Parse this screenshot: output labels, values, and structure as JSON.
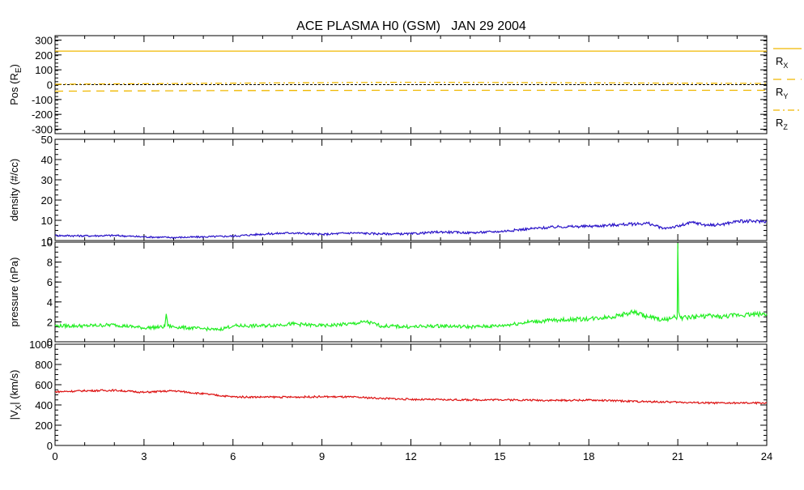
{
  "title": "ACE PLASMA H0 (GSM)   JAN 29 2004",
  "x_ticks": [
    "0",
    "3",
    "6",
    "9",
    "12",
    "15",
    "18",
    "21",
    "24"
  ],
  "colors": {
    "position": "#f0b800",
    "density": "#2a14c8",
    "pressure": "#22ee22",
    "velocity": "#dd1111",
    "axis": "#000000",
    "background": "#ffffff"
  },
  "chart_data": [
    {
      "type": "line",
      "panel": "position",
      "ylabel_main": "Pos (R",
      "ylabel_sub": "E",
      "ylabel_close": ")",
      "xlim": [
        0,
        24
      ],
      "ylim": [
        -330,
        330
      ],
      "ytick_labels": [
        "300",
        "200",
        "100",
        "0",
        "-100",
        "-200",
        "-300"
      ],
      "yticks": [
        300,
        200,
        100,
        0,
        -100,
        -200,
        -300
      ],
      "zero_line": true,
      "legend_position": "right",
      "series": [
        {
          "name": "R",
          "name_sub": "X",
          "style": "solid",
          "x": [
            0,
            24
          ],
          "values": [
            226,
            226
          ]
        },
        {
          "name": "R",
          "name_sub": "Y",
          "style": "dashed",
          "x": [
            0,
            6,
            12,
            18,
            24
          ],
          "values": [
            -44,
            -40,
            -38,
            -38,
            -38
          ]
        },
        {
          "name": "R",
          "name_sub": "Z",
          "style": "dash-dot",
          "x": [
            0,
            6,
            12,
            18,
            24
          ],
          "values": [
            3,
            10,
            16,
            12,
            8
          ]
        }
      ]
    },
    {
      "type": "line",
      "panel": "density",
      "ylabel": "density (#/cc)",
      "xlim": [
        0,
        24
      ],
      "ylim": [
        0,
        50
      ],
      "ytick_labels": [
        "50",
        "40",
        "30",
        "20",
        "10",
        "0"
      ],
      "yticks": [
        50,
        40,
        30,
        20,
        10,
        0
      ],
      "series": [
        {
          "x": [
            0,
            1,
            2,
            3,
            4,
            5,
            6,
            7,
            8,
            9,
            10,
            11,
            12,
            13,
            14,
            15,
            16,
            17,
            18,
            19,
            20,
            20.5,
            21,
            21.5,
            22,
            22.5,
            23,
            24
          ],
          "values": [
            2.5,
            2.3,
            2.5,
            1.8,
            1.5,
            1.8,
            2.2,
            3.2,
            3.8,
            3.0,
            3.8,
            3.3,
            3.3,
            4.3,
            3.8,
            4.5,
            5.8,
            6.8,
            7.0,
            7.8,
            8.5,
            6.0,
            7.0,
            9.0,
            7.5,
            8.0,
            9.5,
            9.5
          ]
        }
      ]
    },
    {
      "type": "line",
      "panel": "pressure",
      "ylabel": "pressure (nPa)",
      "xlim": [
        0,
        24
      ],
      "ylim": [
        0,
        10
      ],
      "ytick_labels": [
        "10",
        "8",
        "6",
        "4",
        "2",
        "0"
      ],
      "yticks": [
        10,
        8,
        6,
        4,
        2,
        0
      ],
      "series": [
        {
          "x": [
            0,
            1,
            2,
            3,
            3.7,
            3.75,
            3.8,
            4,
            5,
            5.5,
            6,
            7,
            8,
            9,
            10,
            10.5,
            11,
            12,
            13,
            14,
            15,
            16,
            17,
            18,
            19,
            19.5,
            20,
            20.5,
            20.98,
            21.0,
            21.03,
            21.1,
            22,
            22.5,
            23,
            24
          ],
          "values": [
            1.6,
            1.6,
            1.7,
            1.4,
            1.5,
            2.8,
            1.6,
            1.5,
            1.3,
            1.2,
            1.6,
            1.6,
            1.8,
            1.6,
            1.8,
            2.0,
            1.6,
            1.5,
            1.6,
            1.5,
            1.6,
            2.0,
            2.2,
            2.3,
            2.6,
            3.0,
            2.5,
            2.2,
            2.5,
            9.9,
            3.0,
            2.4,
            2.6,
            2.5,
            2.7,
            2.8
          ]
        }
      ]
    },
    {
      "type": "line",
      "panel": "velocity",
      "ylabel_main": "|V",
      "ylabel_sub": "X",
      "ylabel_close": "| (km/s)",
      "xlim": [
        0,
        24
      ],
      "ylim": [
        0,
        1000
      ],
      "ytick_labels": [
        "1000",
        "800",
        "600",
        "400",
        "200",
        "0"
      ],
      "yticks": [
        1000,
        800,
        600,
        400,
        200,
        0
      ],
      "series": [
        {
          "x": [
            0,
            1,
            2,
            3,
            4,
            5,
            6,
            7,
            8,
            9,
            10,
            11,
            12,
            13,
            14,
            15,
            16,
            17,
            18,
            19,
            20,
            21,
            22,
            23,
            24
          ],
          "values": [
            530,
            540,
            545,
            525,
            540,
            510,
            480,
            478,
            478,
            482,
            478,
            465,
            455,
            452,
            450,
            452,
            448,
            445,
            448,
            440,
            432,
            428,
            420,
            418,
            420
          ]
        }
      ]
    }
  ]
}
